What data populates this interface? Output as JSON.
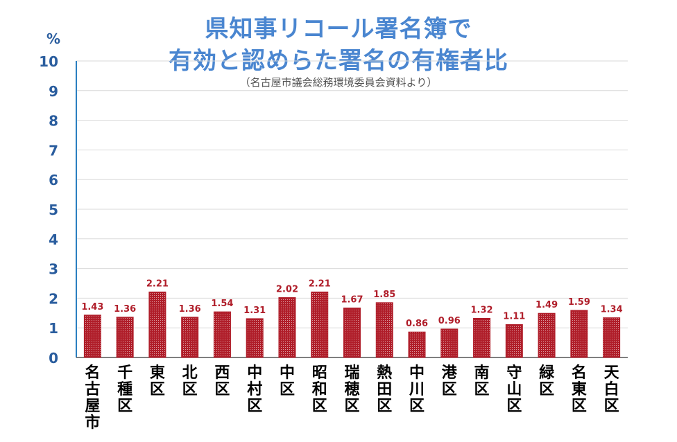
{
  "chart_data": {
    "type": "bar",
    "title_line1": "県知事リコール署名簿で",
    "title_line2": "有効と認めらた署名の有権者比",
    "source_note": "（名古屋市議会総務環境委員会資料より）",
    "unit_label": "%",
    "categories": [
      "名古屋市",
      "千種区",
      "東区",
      "北区",
      "西区",
      "中村区",
      "中区",
      "昭和区",
      "瑞穂区",
      "熱田区",
      "中川区",
      "港区",
      "南区",
      "守山区",
      "緑区",
      "名東区",
      "天白区"
    ],
    "values": [
      1.43,
      1.36,
      2.21,
      1.36,
      1.54,
      1.31,
      2.02,
      2.21,
      1.67,
      1.85,
      0.86,
      0.96,
      1.32,
      1.11,
      1.49,
      1.59,
      1.34
    ],
    "value_labels": [
      "1.43",
      "1.36",
      "2.21",
      "1.36",
      "1.54",
      "1.31",
      "2.02",
      "2.21",
      "1.67",
      "1.85",
      "0.86",
      "0.96",
      "1.32",
      "1.11",
      "1.49",
      "1.59",
      "1.34"
    ],
    "y_ticks": [
      "0",
      "1",
      "2",
      "3",
      "4",
      "5",
      "6",
      "7",
      "8",
      "9",
      "10"
    ],
    "ylim": [
      0,
      10
    ],
    "grid": true,
    "colors": {
      "bar": "#b01e2a",
      "bar_dot": "#ffffff",
      "axis": "#2a7fc0",
      "tick_text": "#2a5d9e",
      "value_text": "#b01e2a",
      "title": "#4a86d0",
      "grid": "#d9d9d9"
    }
  }
}
